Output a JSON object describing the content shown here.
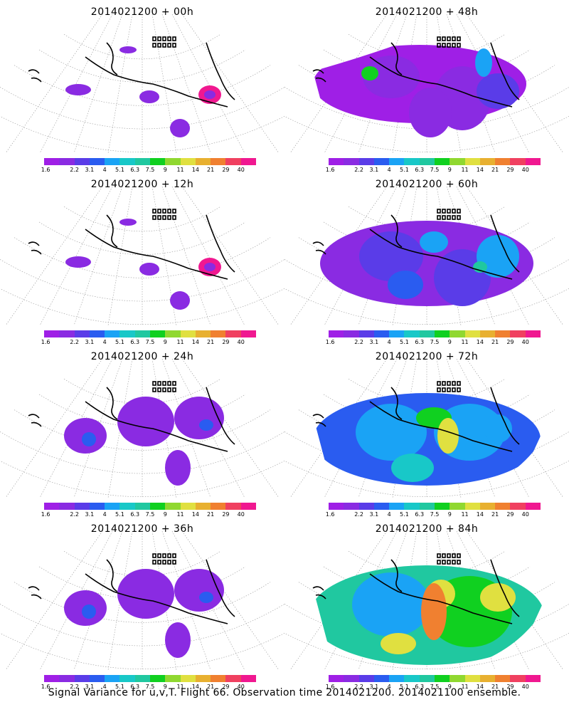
{
  "panels": [
    {
      "title": "2014021200 + 00h",
      "level": 1
    },
    {
      "title": "2014021200 + 48h",
      "level": 3
    },
    {
      "title": "2014021200 + 12h",
      "level": 1
    },
    {
      "title": "2014021200 + 60h",
      "level": 4
    },
    {
      "title": "2014021200 + 24h",
      "level": 2
    },
    {
      "title": "2014021200 + 72h",
      "level": 5
    },
    {
      "title": "2014021200 + 36h",
      "level": 2
    },
    {
      "title": "2014021200 + 84h",
      "level": 6
    }
  ],
  "colorbar": {
    "labels": [
      "1.6",
      "2.2",
      "3.1",
      "4",
      "5.1",
      "6.3",
      "7.5",
      "9",
      "11",
      "14",
      "21",
      "29",
      "40"
    ],
    "colors": [
      "#9f1fe6",
      "#8a2be2",
      "#5a3ce8",
      "#2a5cf0",
      "#1aa3f5",
      "#18c8c8",
      "#20c8a0",
      "#10d020",
      "#90d830",
      "#e0e040",
      "#e8b030",
      "#f08030",
      "#f04060",
      "#f01890"
    ]
  },
  "footer": "Signal Variance for u,v,T. Flight 66. Observation time 2014021200. 2014021100 ensemble."
}
